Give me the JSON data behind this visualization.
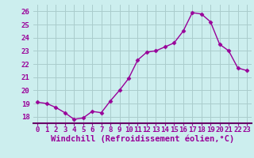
{
  "hours": [
    0,
    1,
    2,
    3,
    4,
    5,
    6,
    7,
    8,
    9,
    10,
    11,
    12,
    13,
    14,
    15,
    16,
    17,
    18,
    19,
    20,
    21,
    22,
    23
  ],
  "values": [
    19.1,
    19.0,
    18.7,
    18.3,
    17.8,
    17.9,
    18.4,
    18.3,
    19.2,
    20.0,
    20.9,
    22.3,
    22.9,
    23.0,
    23.3,
    23.6,
    24.5,
    25.9,
    25.8,
    25.2,
    23.5,
    23.0,
    21.7,
    21.5
  ],
  "line_color": "#990099",
  "marker": "D",
  "marker_size": 2.5,
  "bg_color": "#cceeee",
  "grid_color": "#aacccc",
  "ylim": [
    17.5,
    26.5
  ],
  "xlim": [
    -0.5,
    23.5
  ],
  "xlabel": "Windchill (Refroidissement éolien,°C)",
  "xlabel_fontsize": 7.5,
  "ytick_labels": [
    "18",
    "19",
    "20",
    "21",
    "22",
    "23",
    "24",
    "25",
    "26"
  ],
  "ytick_values": [
    18,
    19,
    20,
    21,
    22,
    23,
    24,
    25,
    26
  ],
  "xtick_labels": [
    "0",
    "1",
    "2",
    "3",
    "4",
    "5",
    "6",
    "7",
    "8",
    "9",
    "10",
    "11",
    "12",
    "13",
    "14",
    "15",
    "16",
    "17",
    "18",
    "19",
    "20",
    "21",
    "22",
    "23"
  ],
  "tick_fontsize": 6.5,
  "line_width": 1.0,
  "axis_color": "#660066"
}
